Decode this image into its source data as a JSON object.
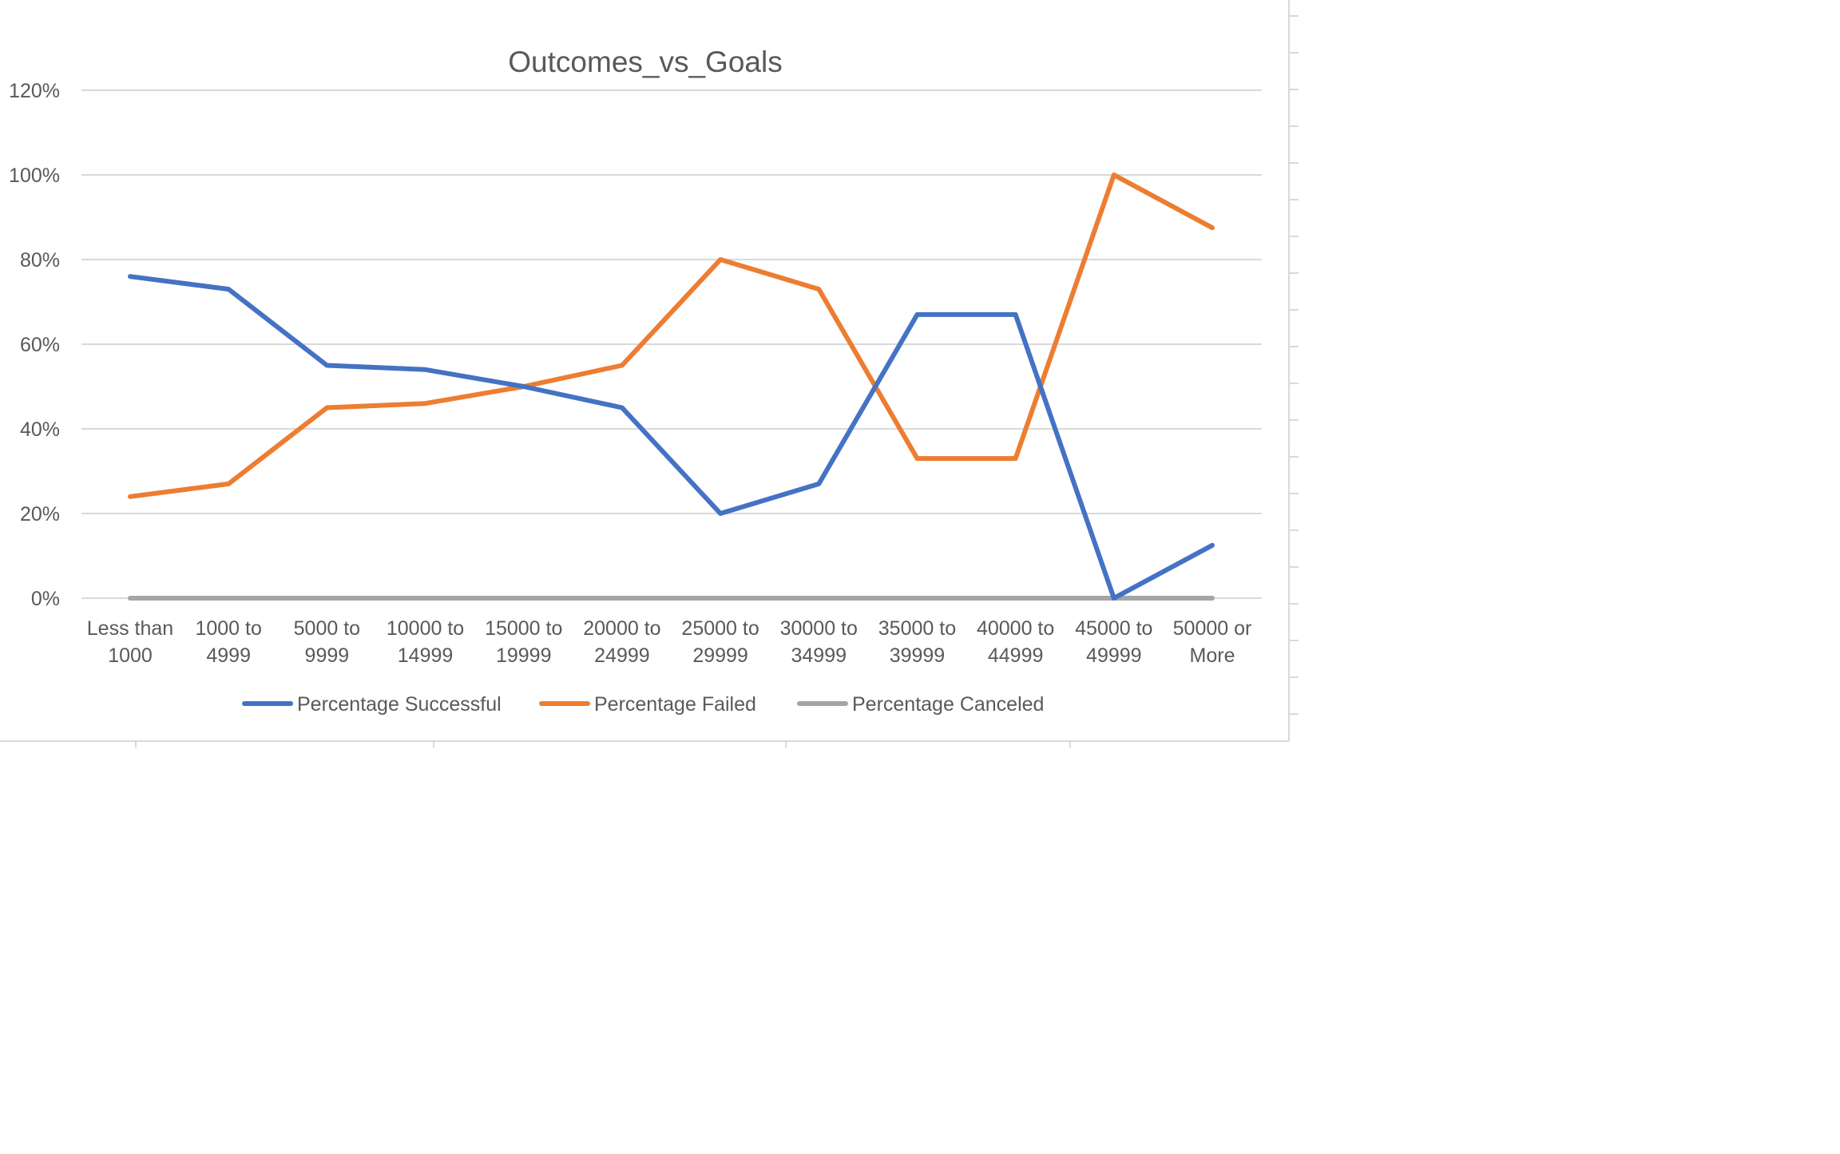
{
  "chart_data": {
    "type": "line",
    "title": "Outcomes_vs_Goals",
    "xlabel": "",
    "ylabel": "",
    "categories": [
      [
        "Less than",
        "1000"
      ],
      [
        "1000 to",
        "4999"
      ],
      [
        "5000 to",
        "9999"
      ],
      [
        "10000 to",
        "14999"
      ],
      [
        "15000 to",
        "19999"
      ],
      [
        "20000 to",
        "24999"
      ],
      [
        "25000 to",
        "29999"
      ],
      [
        "30000 to",
        "34999"
      ],
      [
        "35000 to",
        "39999"
      ],
      [
        "40000 to",
        "44999"
      ],
      [
        "45000 to",
        "49999"
      ],
      [
        "50000 or",
        "More"
      ]
    ],
    "ylim": [
      0,
      1.2
    ],
    "y_ticks": [
      {
        "value": 0,
        "label": "0%"
      },
      {
        "value": 0.2,
        "label": "20%"
      },
      {
        "value": 0.4,
        "label": "40%"
      },
      {
        "value": 0.6,
        "label": "60%"
      },
      {
        "value": 0.8,
        "label": "80%"
      },
      {
        "value": 1.0,
        "label": "100%"
      },
      {
        "value": 1.2,
        "label": "120%"
      }
    ],
    "grid": true,
    "legend_position": "bottom",
    "series": [
      {
        "name": "Percentage Successful",
        "color": "#4472C4",
        "values": [
          0.76,
          0.73,
          0.55,
          0.54,
          0.5,
          0.45,
          0.2,
          0.27,
          0.67,
          0.67,
          0.0,
          0.125
        ]
      },
      {
        "name": "Percentage Failed",
        "color": "#ED7D31",
        "values": [
          0.24,
          0.27,
          0.45,
          0.46,
          0.5,
          0.55,
          0.8,
          0.73,
          0.33,
          0.33,
          1.0,
          0.875
        ]
      },
      {
        "name": "Percentage Canceled",
        "color": "#A5A5A5",
        "values": [
          0,
          0,
          0,
          0,
          0,
          0,
          0,
          0,
          0,
          0,
          0,
          0
        ]
      }
    ]
  }
}
